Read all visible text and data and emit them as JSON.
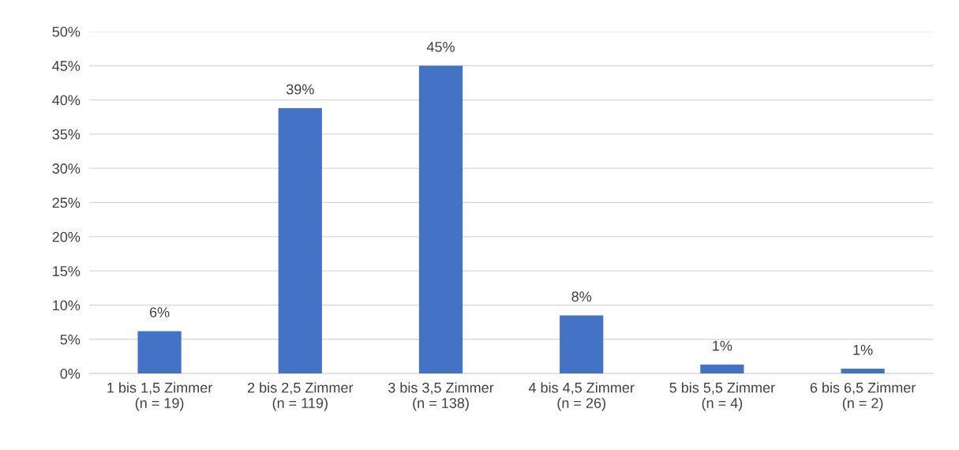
{
  "chart_data": {
    "type": "bar",
    "categories": [
      "1 bis 1,5 Zimmer\n(n = 19)",
      "2 bis 2,5 Zimmer\n(n = 119)",
      "3 bis 3,5 Zimmer\n(n = 138)",
      "4 bis 4,5 Zimmer\n(n = 26)",
      "5 bis 5,5 Zimmer\n(n = 4)",
      "6 bis 6,5 Zimmer\n(n = 2)"
    ],
    "values": [
      6.2,
      38.8,
      45.0,
      8.5,
      1.3,
      0.7
    ],
    "value_labels": [
      "6%",
      "39%",
      "45%",
      "8%",
      "1%",
      "1%"
    ],
    "color": "#4472c4",
    "ylim": [
      0,
      50
    ],
    "yticks": [
      {
        "value": 0,
        "label": "0%"
      },
      {
        "value": 5,
        "label": "5%"
      },
      {
        "value": 10,
        "label": "10%"
      },
      {
        "value": 15,
        "label": "15%"
      },
      {
        "value": 20,
        "label": "20%"
      },
      {
        "value": 25,
        "label": "25%"
      },
      {
        "value": 30,
        "label": "30%"
      },
      {
        "value": 35,
        "label": "35%"
      },
      {
        "value": 40,
        "label": "40%"
      },
      {
        "value": 45,
        "label": "45%"
      },
      {
        "value": 50,
        "label": "50%"
      }
    ],
    "grid": "y",
    "legend": false
  }
}
